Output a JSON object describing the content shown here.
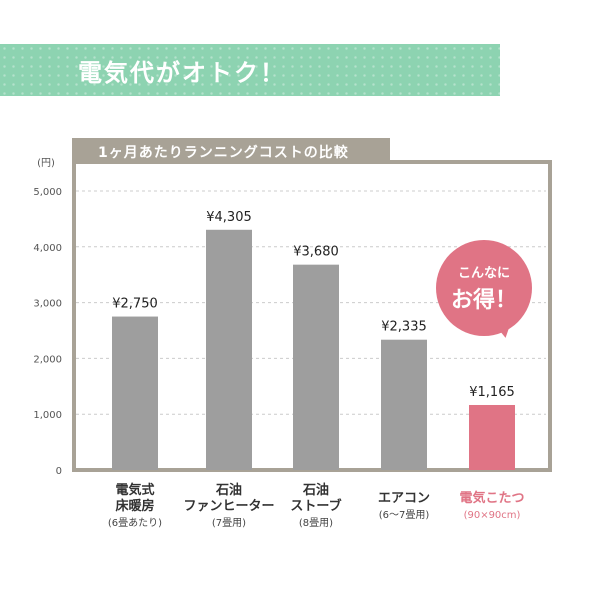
{
  "banner": {
    "title": "電気代がオトク！"
  },
  "panel": {
    "title": "1ヶ月あたりランニングコストの比較"
  },
  "callout": {
    "line1": "こんなに",
    "line2": "お得！"
  },
  "colors": {
    "bar": "#9e9e9e",
    "highlight": "#e07485",
    "banner": "#8dd3b1",
    "panel": "#a8a296",
    "grid": "#cccccc"
  },
  "categories": [
    {
      "lines": [
        "電気式",
        "床暖房"
      ],
      "sub": "(6畳あたり)",
      "highlight": false
    },
    {
      "lines": [
        "石油",
        "ファンヒーター"
      ],
      "sub": "(7畳用)",
      "highlight": false
    },
    {
      "lines": [
        "石油",
        "ストーブ"
      ],
      "sub": "(8畳用)",
      "highlight": false
    },
    {
      "lines": [
        "エアコン"
      ],
      "sub": "(6〜7畳用)",
      "highlight": false
    },
    {
      "lines": [
        "電気こたつ"
      ],
      "sub": "(90×90cm)",
      "highlight": true
    }
  ],
  "chart_data": {
    "type": "bar",
    "title": "1ヶ月あたりランニングコストの比較",
    "ylabel": "(円)",
    "ylim": [
      0,
      5000
    ],
    "yticks": [
      0,
      1000,
      2000,
      3000,
      4000,
      5000
    ],
    "ytick_labels": [
      "0",
      "1,000",
      "2,000",
      "3,000",
      "4,000",
      "5,000"
    ],
    "grid": true,
    "categories": [
      "電気式床暖房",
      "石油ファンヒーター",
      "石油ストーブ",
      "エアコン",
      "電気こたつ"
    ],
    "values": [
      2750,
      4305,
      3680,
      2335,
      1165
    ],
    "value_labels": [
      "¥2,750",
      "¥4,305",
      "¥3,680",
      "¥2,335",
      "¥1,165"
    ]
  }
}
